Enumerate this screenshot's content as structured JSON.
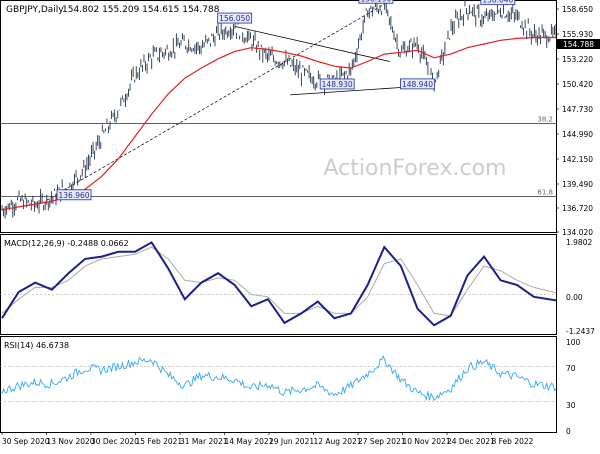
{
  "header": {
    "title": "GBPJPY,Daily",
    "ohlc": "154.802 155.209 154.615 154.788",
    "last_price": "154.788"
  },
  "watermark": "ActionForex.com",
  "colors": {
    "price_bars": "#22334a",
    "ema": "#e02020",
    "macd_line": "#1a1f8a",
    "macd_signal": "#aaaaaa",
    "rsi": "#33aaee",
    "label_border": "#1f2d9e",
    "label_fill": "#e8eaf8",
    "grid": "#000000",
    "last_price_box": "#000000"
  },
  "price_axis": {
    "ylim": [
      134.02,
      158.0
    ],
    "ticks": [
      "158.650",
      "155.930",
      "153.220",
      "150.420",
      "147.730",
      "144.990",
      "142.150",
      "139.490",
      "136.720",
      "134.020"
    ]
  },
  "macd_panel": {
    "label": "MACD(12,26,9) -0.2488 0.0662",
    "ticks": [
      "1.9802",
      "0.00",
      "-1.2437"
    ]
  },
  "rsi_panel": {
    "label": "RSI(14) 46.6738",
    "ticks": [
      "100",
      "70",
      "30",
      "0"
    ]
  },
  "x_axis": [
    "30 Sep 2020",
    "13 Nov 2020",
    "30 Dec 2020",
    "15 Feb 2021",
    "31 Mar 2021",
    "14 May 2021",
    "29 Jun 2021",
    "12 Aug 2021",
    "27 Sep 2021",
    "10 Nov 2021",
    "24 Dec 2021",
    "8 Feb 2022"
  ],
  "fib_levels": [
    {
      "label": "38.2",
      "value": 145.3
    },
    {
      "label": "61.8",
      "value": 137.4
    }
  ],
  "annotations": [
    {
      "label": "158.190",
      "x": 0.675,
      "value": 158.19
    },
    {
      "label": "158.040",
      "x": 0.895,
      "value": 158.04
    },
    {
      "label": "156.050",
      "x": 0.42,
      "value": 156.05
    },
    {
      "label": "148.930",
      "x": 0.605,
      "value": 148.93
    },
    {
      "label": "148.940",
      "x": 0.75,
      "value": 148.94
    },
    {
      "label": "136.960",
      "x": 0.13,
      "value": 136.96
    }
  ],
  "chart_data": [
    {
      "type": "line",
      "title": "GBPJPY,Daily",
      "x": [
        0,
        0.03,
        0.06,
        0.09,
        0.12,
        0.15,
        0.18,
        0.21,
        0.24,
        0.27,
        0.3,
        0.33,
        0.36,
        0.39,
        0.42,
        0.45,
        0.48,
        0.51,
        0.54,
        0.57,
        0.6,
        0.63,
        0.66,
        0.69,
        0.72,
        0.75,
        0.78,
        0.81,
        0.84,
        0.87,
        0.9,
        0.93,
        0.96,
        1.0
      ],
      "series": [
        {
          "name": "",
          "values": [
            136.0,
            137.0,
            136.5,
            137.3,
            138.5,
            140.5,
            143.8,
            146.8,
            150.5,
            152.5,
            153.2,
            154.0,
            153.5,
            155.0,
            155.8,
            154.2,
            152.5,
            152.0,
            150.8,
            150.0,
            149.8,
            151.0,
            157.5,
            158.0,
            153.0,
            154.0,
            149.5,
            155.5,
            157.8,
            156.5,
            157.5,
            156.8,
            154.8,
            154.8
          ]
        },
        {
          "name": "",
          "values": [
            136.0,
            136.3,
            136.6,
            136.9,
            137.4,
            138.2,
            139.6,
            141.5,
            143.9,
            146.3,
            148.5,
            150.2,
            151.3,
            152.3,
            153.1,
            153.5,
            153.3,
            153.0,
            152.6,
            152.0,
            151.5,
            151.3,
            152.0,
            152.8,
            153.0,
            153.2,
            152.4,
            152.8,
            153.5,
            153.9,
            154.3,
            154.5,
            154.6,
            154.6
          ]
        }
      ],
      "ylim": [
        134.02,
        158.0
      ]
    },
    {
      "type": "line",
      "title": "MACD(12,26,9) -0.2488 0.0662",
      "x": [
        0,
        0.03,
        0.06,
        0.09,
        0.12,
        0.15,
        0.18,
        0.21,
        0.24,
        0.27,
        0.3,
        0.33,
        0.36,
        0.39,
        0.42,
        0.45,
        0.48,
        0.51,
        0.54,
        0.57,
        0.6,
        0.63,
        0.66,
        0.69,
        0.72,
        0.75,
        0.78,
        0.81,
        0.84,
        0.87,
        0.9,
        0.93,
        0.96,
        1.0
      ],
      "series": [
        {
          "name": "",
          "values": [
            -1.0,
            0.1,
            0.5,
            0.2,
            0.9,
            1.5,
            1.6,
            1.8,
            1.8,
            2.2,
            1.1,
            -0.2,
            0.5,
            0.9,
            0.4,
            -0.5,
            -0.2,
            -1.2,
            -0.8,
            -0.3,
            -1.0,
            -0.8,
            0.4,
            2.0,
            1.2,
            -0.6,
            -1.3,
            -0.9,
            0.8,
            1.6,
            0.6,
            0.4,
            -0.1,
            -0.25
          ]
        },
        {
          "name": "",
          "values": [
            -0.8,
            -0.2,
            0.3,
            0.3,
            0.6,
            1.2,
            1.5,
            1.6,
            1.7,
            2.0,
            1.5,
            0.6,
            0.5,
            0.7,
            0.6,
            0.0,
            -0.1,
            -0.8,
            -0.8,
            -0.5,
            -0.8,
            -0.8,
            -0.1,
            1.3,
            1.5,
            0.4,
            -0.8,
            -0.9,
            0.2,
            1.2,
            1.0,
            0.6,
            0.3,
            0.07
          ]
        }
      ],
      "ylim": [
        -1.5,
        2.3
      ]
    },
    {
      "type": "line",
      "title": "RSI(14) 46.6738",
      "x": [
        0,
        0.03,
        0.06,
        0.09,
        0.12,
        0.15,
        0.18,
        0.21,
        0.24,
        0.27,
        0.3,
        0.33,
        0.36,
        0.39,
        0.42,
        0.45,
        0.48,
        0.51,
        0.54,
        0.57,
        0.6,
        0.63,
        0.66,
        0.69,
        0.72,
        0.75,
        0.78,
        0.81,
        0.84,
        0.87,
        0.9,
        0.93,
        0.96,
        1.0
      ],
      "series": [
        {
          "name": "",
          "values": [
            42,
            48,
            52,
            50,
            58,
            68,
            66,
            70,
            75,
            78,
            60,
            48,
            60,
            58,
            55,
            45,
            50,
            40,
            44,
            48,
            38,
            48,
            62,
            78,
            55,
            40,
            35,
            45,
            68,
            75,
            62,
            58,
            50,
            46.7
          ]
        }
      ],
      "ylim": [
        0,
        100
      ]
    }
  ]
}
